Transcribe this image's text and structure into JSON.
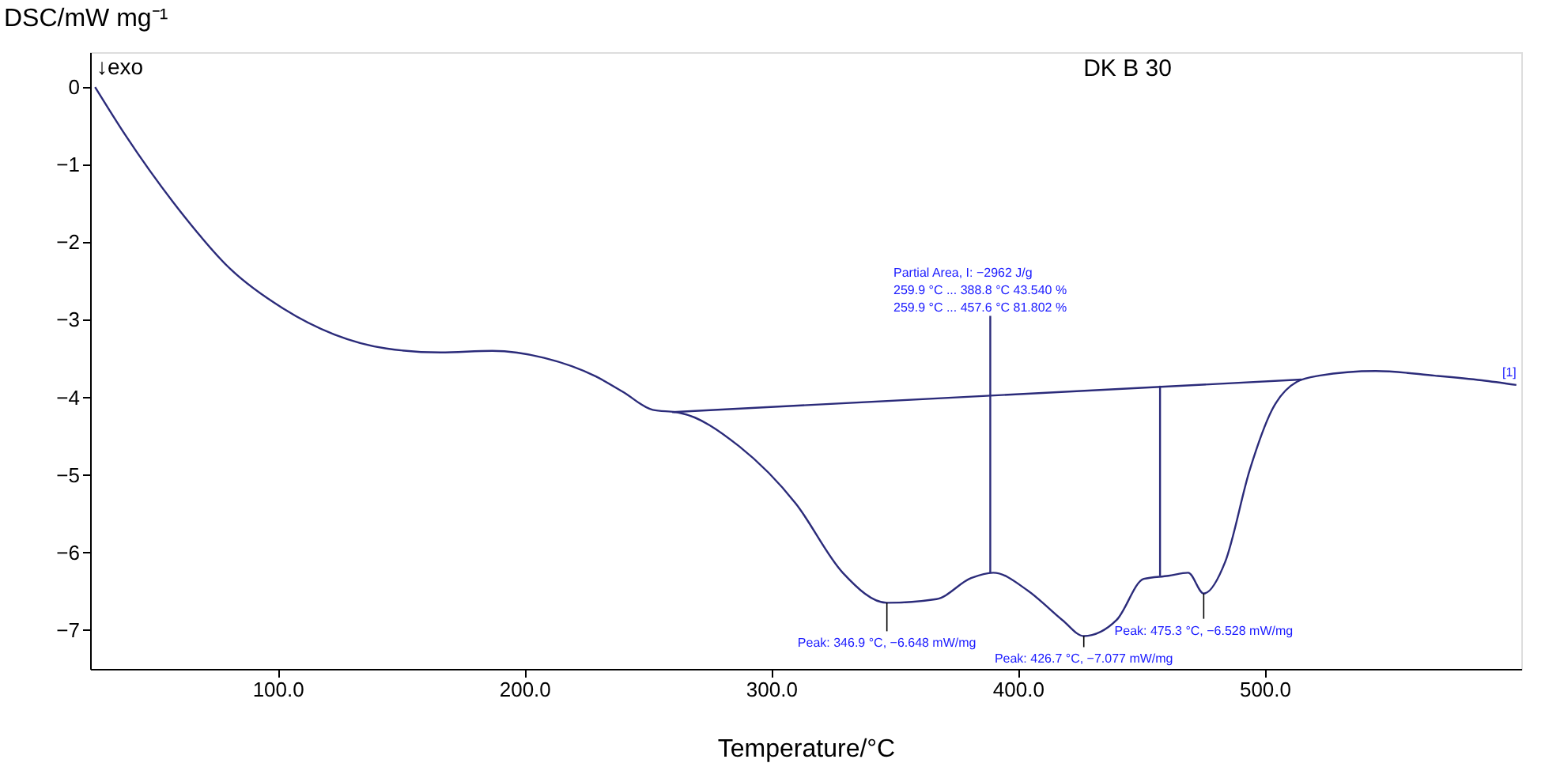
{
  "chart_data": {
    "type": "line",
    "title": "DK B 30",
    "xlabel": "Temperature/°C",
    "ylabel": "DSC/mW mg⁻¹",
    "xlim": [
      24,
      604
    ],
    "ylim": [
      -7.5,
      0.45
    ],
    "xticks": [
      {
        "value": 100,
        "label": "100.0"
      },
      {
        "value": 200,
        "label": "200.0"
      },
      {
        "value": 300,
        "label": "300.0"
      },
      {
        "value": 400,
        "label": "400.0"
      },
      {
        "value": 500,
        "label": "500.0"
      }
    ],
    "yticks": [
      {
        "value": -7,
        "label": "−7"
      },
      {
        "value": -6,
        "label": "−6"
      },
      {
        "value": -5,
        "label": "−5"
      },
      {
        "value": -4,
        "label": "−4"
      },
      {
        "value": -3,
        "label": "−3"
      },
      {
        "value": -2,
        "label": "−2"
      },
      {
        "value": -1,
        "label": "−1"
      },
      0
    ],
    "grid": false,
    "line_style": "solid",
    "series": [
      {
        "color": "#2b2b7a",
        "x": [
          26,
          38.5,
          60,
          81,
          102,
          123,
          144,
          166,
          187,
          208,
          229,
          240,
          252,
          261,
          263,
          287,
          310,
          329,
          346.9,
          367,
          381,
          390,
          404,
          418,
          426.7,
          440,
          451,
          461,
          469,
          475.3,
          484,
          494,
          503,
          513,
          522,
          545,
          569,
          588,
          602
        ],
        "values": [
          0,
          -0.63,
          -1.58,
          -2.35,
          -2.85,
          -3.19,
          -3.37,
          -3.42,
          -3.4,
          -3.49,
          -3.73,
          -3.93,
          -4.16,
          -4.19,
          -4.2,
          -4.63,
          -5.37,
          -6.26,
          -6.648,
          -6.6,
          -6.33,
          -6.26,
          -6.49,
          -6.87,
          -7.077,
          -6.87,
          -6.34,
          -6.3,
          -6.26,
          -6.528,
          -6.12,
          -4.93,
          -4.16,
          -3.8,
          -3.72,
          -3.66,
          -3.72,
          -3.78,
          -3.84
        ]
      },
      {
        "color": "#2b2b7a",
        "x": [
          259.9,
          515
        ],
        "values": [
          -4.19,
          -3.77
        ]
      },
      {
        "color": "#2b2b7a",
        "x": [
          388.8,
          388.8
        ],
        "values": [
          -6.26,
          -2.95
        ]
      },
      {
        "color": "#2b2b7a",
        "x": [
          457.6,
          457.6
        ],
        "values": [
          -6.3,
          -3.85
        ]
      }
    ],
    "annotations": [
      "↓exo",
      "[1]",
      "Partial Area, I:          −2962 J/g",
      "259.9 °C ... 388.8 °C    43.540 %",
      "259.9 °C ... 457.6 °C  81.802 %",
      {
        "text": "Peak: 346.9 °C, −6.648 mW/mg",
        "x": 346.9,
        "y": -6.648
      },
      {
        "text": "Peak: 426.7 °C, −7.077 mW/mg",
        "x": 426.7,
        "y": -7.077
      },
      {
        "text": "Peak: 475.3 °C, −6.528 mW/mg",
        "x": 475.3,
        "y": -6.528
      }
    ]
  }
}
